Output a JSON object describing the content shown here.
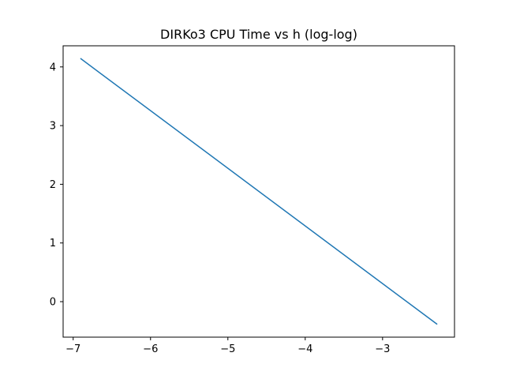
{
  "chart_data": {
    "type": "line",
    "title": "DIRKo3 CPU Time vs h (log-log)",
    "xlabel": "",
    "ylabel": "",
    "xlim": [
      -7.13,
      -2.07
    ],
    "ylim": [
      -0.605,
      4.36
    ],
    "xticks": [
      {
        "value": -7,
        "label": "−7"
      },
      {
        "value": -6,
        "label": "−6"
      },
      {
        "value": -5,
        "label": "−5"
      },
      {
        "value": -4,
        "label": "−4"
      },
      {
        "value": -3,
        "label": "−3"
      }
    ],
    "yticks": [
      {
        "value": 0,
        "label": "0"
      },
      {
        "value": 1,
        "label": "1"
      },
      {
        "value": 2,
        "label": "2"
      },
      {
        "value": 3,
        "label": "3"
      },
      {
        "value": 4,
        "label": "4"
      }
    ],
    "grid": false,
    "series": [
      {
        "color": "#1f77b4",
        "x": [
          -6.9,
          -2.3
        ],
        "y": [
          4.14,
          -0.38
        ]
      }
    ]
  }
}
